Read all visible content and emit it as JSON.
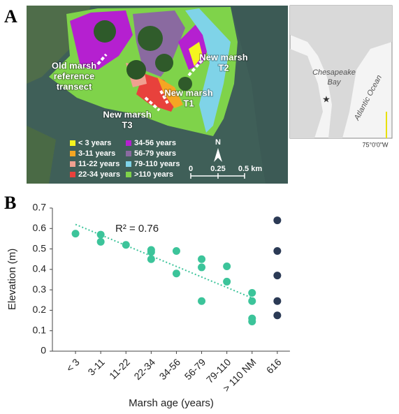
{
  "panel_a": {
    "label": "A",
    "transects": [
      {
        "lines": [
          "Old marsh",
          "reference",
          "transect"
        ]
      },
      {
        "lines": [
          "New marsh",
          "T2"
        ]
      },
      {
        "lines": [
          "New marsh",
          "T1"
        ]
      },
      {
        "lines": [
          "New marsh",
          "T3"
        ]
      }
    ],
    "legend": [
      {
        "label": "< 3 years",
        "color": "#f5f51e"
      },
      {
        "label": "3-11 years",
        "color": "#f5a623"
      },
      {
        "label": "11-22 years",
        "color": "#f0a090"
      },
      {
        "label": "22-34 years",
        "color": "#e8413c"
      },
      {
        "label": "34-56 years",
        "color": "#b520d0"
      },
      {
        "label": "56-79 years",
        "color": "#8a6aa0"
      },
      {
        "label": "79-110 years",
        "color": "#7fd3e8"
      },
      {
        "label": ">110 years",
        "color": "#7fd34a"
      }
    ],
    "north": "N",
    "scale": [
      "0",
      "0.25",
      "0.5 km"
    ],
    "inset": {
      "bay": [
        "Chesapeake",
        "Bay"
      ],
      "ocean": "Atlantic Ocean",
      "longitude": "75°0'0\"W"
    }
  },
  "chart_data": {
    "type": "scatter",
    "panel_label": "B",
    "x_label": "Marsh age (years)",
    "y_label": "Elevation (m)",
    "annotation": "R² = 0.76",
    "categories": [
      "< 3",
      "3-11",
      "11-22",
      "22-34",
      "34-56",
      "56-79",
      "79-110",
      "> 110 NM",
      "616"
    ],
    "ylim": [
      0,
      0.7
    ],
    "yticks": [
      0,
      0.1,
      0.2,
      0.3,
      0.4,
      0.5,
      0.6,
      0.7
    ],
    "series": [
      {
        "color": "#3cc49a",
        "x": [
          "< 3",
          "3-11",
          "3-11",
          "11-22",
          "22-34",
          "22-34",
          "22-34",
          "34-56",
          "34-56",
          "56-79",
          "56-79",
          "56-79",
          "79-110",
          "79-110",
          "> 110 NM",
          "> 110 NM",
          "> 110 NM",
          "> 110 NM"
        ],
        "values": [
          0.575,
          0.57,
          0.535,
          0.52,
          0.495,
          0.485,
          0.45,
          0.49,
          0.38,
          0.45,
          0.41,
          0.245,
          0.415,
          0.34,
          0.285,
          0.245,
          0.16,
          0.145
        ]
      },
      {
        "color": "#2b3a55",
        "x": [
          "616",
          "616",
          "616",
          "616",
          "616"
        ],
        "values": [
          0.64,
          0.49,
          0.37,
          0.245,
          0.175
        ]
      }
    ],
    "trendline": {
      "color": "#3cc49a",
      "x": [
        "< 3",
        "> 110 NM"
      ],
      "values": [
        0.62,
        0.26
      ]
    }
  }
}
